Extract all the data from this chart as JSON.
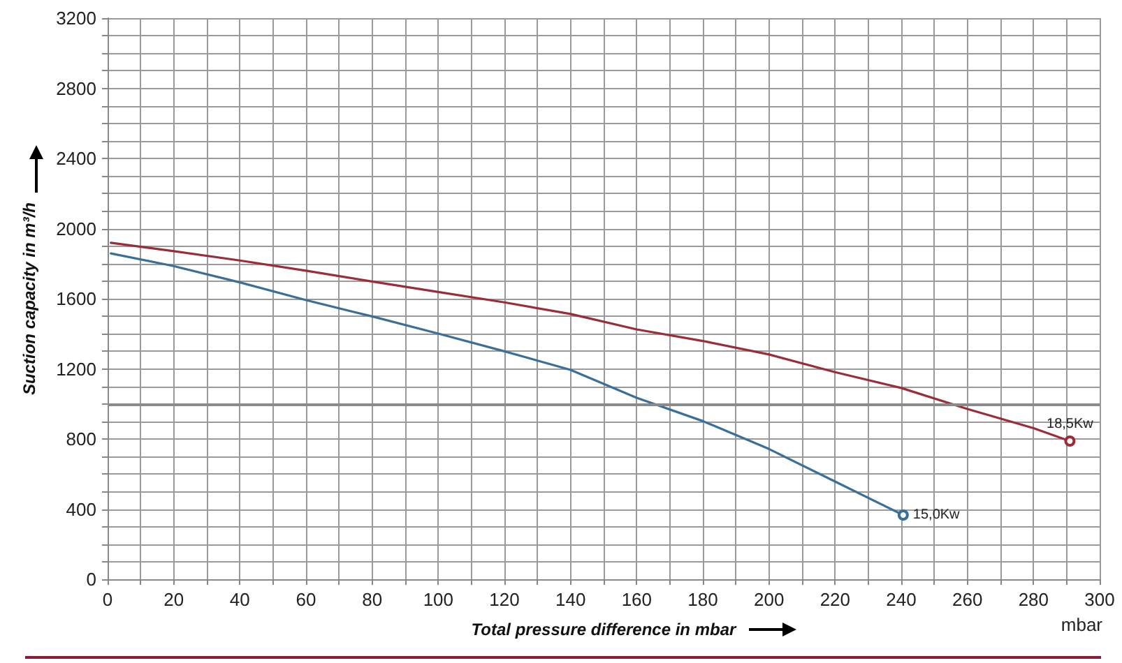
{
  "chart_data": {
    "type": "line",
    "xlabel": "Total pressure difference in mbar",
    "ylabel": "Suction capacity in m³/h",
    "annotations": [
      "mbar"
    ],
    "xlim": [
      0,
      300
    ],
    "xticks": [
      0,
      {
        "value": 10,
        "label": null
      },
      20,
      {
        "value": 30,
        "label": null
      },
      40,
      {
        "value": 50,
        "label": null
      },
      60,
      {
        "value": 70,
        "label": null
      },
      80,
      {
        "value": 90,
        "label": null
      },
      100,
      {
        "value": 110,
        "label": null
      },
      120,
      {
        "value": 130,
        "label": null
      },
      140,
      {
        "value": 150,
        "label": null
      },
      160,
      {
        "value": 170,
        "label": null
      },
      180,
      {
        "value": 190,
        "label": null
      },
      200,
      {
        "value": 210,
        "label": null
      },
      220,
      {
        "value": 230,
        "label": null
      },
      240,
      {
        "value": 250,
        "label": null
      },
      260,
      {
        "value": 270,
        "label": null
      },
      280,
      {
        "value": 290,
        "label": null
      },
      300
    ],
    "ylim": [
      0,
      3200
    ],
    "yticks": [
      0,
      {
        "value": 100,
        "label": null
      },
      {
        "value": 200,
        "label": null
      },
      {
        "value": 300,
        "label": null
      },
      400,
      {
        "value": 500,
        "label": null
      },
      {
        "value": 600,
        "label": null
      },
      {
        "value": 700,
        "label": null
      },
      800,
      {
        "value": 900,
        "label": null
      },
      {
        "value": 1000,
        "label": null
      },
      {
        "value": 1100,
        "label": null
      },
      1200,
      {
        "value": 1300,
        "label": null
      },
      {
        "value": 1400,
        "label": null
      },
      {
        "value": 1500,
        "label": null
      },
      1600,
      {
        "value": 1700,
        "label": null
      },
      {
        "value": 1800,
        "label": null
      },
      {
        "value": 1900,
        "label": null
      },
      2000,
      {
        "value": 2100,
        "label": null
      },
      {
        "value": 2200,
        "label": null
      },
      {
        "value": 2300,
        "label": null
      },
      2400,
      {
        "value": 2500,
        "label": null
      },
      {
        "value": 2600,
        "label": null
      },
      {
        "value": 2700,
        "label": null
      },
      2800,
      {
        "value": 2900,
        "label": null
      },
      {
        "value": 3000,
        "label": null
      },
      {
        "value": 3100,
        "label": null
      },
      3200
    ],
    "grid": true,
    "ref_lines": [
      {
        "axis": "y",
        "value": 1000,
        "label": null,
        "color": "#8a8a8a"
      }
    ],
    "series": [
      {
        "name": "15,0Kw",
        "color": "#3a6f99",
        "x": [
          1,
          20,
          40,
          60,
          80,
          100,
          120,
          140,
          160,
          180,
          200,
          220,
          240.6
        ],
        "values": [
          1858,
          1786,
          1693,
          1592,
          1499,
          1401,
          1300,
          1194,
          1035,
          902,
          743,
          557,
          366
        ]
      },
      {
        "name": "18,5Kw",
        "color": "#9b2d3a",
        "x": [
          1,
          20,
          40,
          60,
          80,
          100,
          120,
          140,
          160,
          180,
          200,
          220,
          240,
          260,
          280,
          291
        ],
        "values": [
          1919,
          1871,
          1818,
          1760,
          1698,
          1638,
          1579,
          1513,
          1425,
          1359,
          1282,
          1181,
          1091,
          971,
          862,
          788
        ]
      }
    ]
  }
}
